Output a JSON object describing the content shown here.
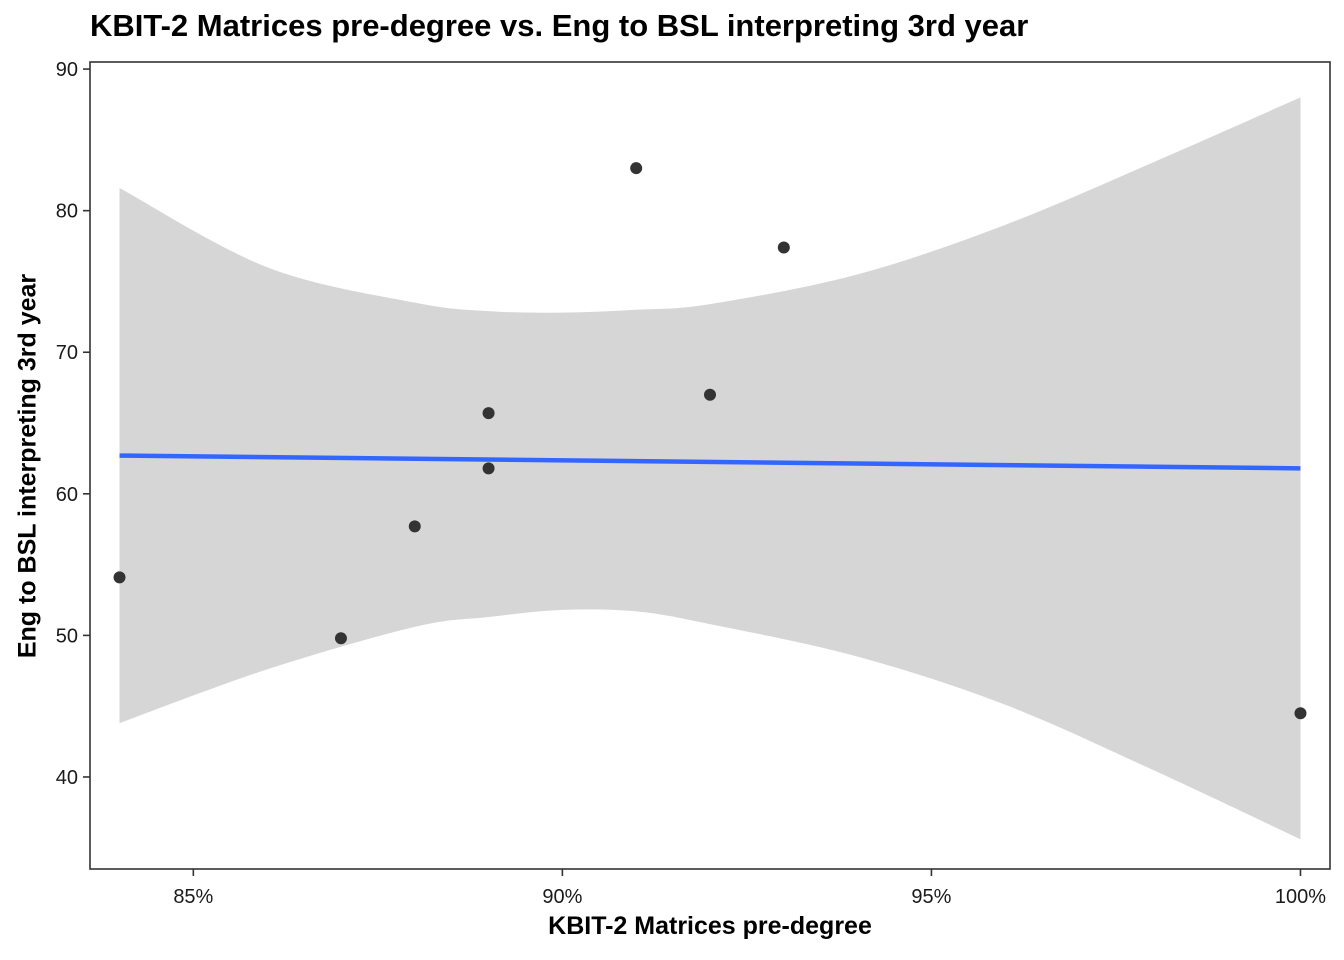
{
  "chart_data": {
    "type": "scatter",
    "title": "KBIT-2 Matrices pre-degree vs. Eng to BSL interpreting 3rd year",
    "xlabel": "KBIT-2 Matrices pre-degree",
    "ylabel": "Eng to BSL interpreting 3rd year",
    "xlim": [
      0.836,
      1.004
    ],
    "ylim": [
      33.5,
      90.5
    ],
    "x_ticks": [
      0.85,
      0.9,
      0.95,
      1.0
    ],
    "x_tick_labels": [
      "85%",
      "90%",
      "95%",
      "100%"
    ],
    "y_ticks": [
      40,
      50,
      60,
      70,
      80,
      90
    ],
    "y_tick_labels": [
      "40",
      "50",
      "60",
      "70",
      "80",
      "90"
    ],
    "grid": false,
    "legend": "none",
    "points": [
      {
        "x": 0.84,
        "y": 54.1
      },
      {
        "x": 0.87,
        "y": 49.8
      },
      {
        "x": 0.88,
        "y": 57.7
      },
      {
        "x": 0.89,
        "y": 61.8
      },
      {
        "x": 0.89,
        "y": 65.7
      },
      {
        "x": 0.91,
        "y": 83.0
      },
      {
        "x": 0.92,
        "y": 67.0
      },
      {
        "x": 0.93,
        "y": 77.4
      },
      {
        "x": 1.0,
        "y": 44.5
      }
    ],
    "fit_line": {
      "method": "linear regression",
      "x": [
        0.84,
        1.0
      ],
      "y": [
        62.7,
        61.8
      ],
      "color": "#3366ff"
    },
    "confidence_band": {
      "x": [
        0.84,
        0.86,
        0.88,
        0.89,
        0.9,
        0.91,
        0.92,
        0.94,
        0.96,
        0.98,
        1.0
      ],
      "upper": [
        81.6,
        76.0,
        73.5,
        72.9,
        72.8,
        73.0,
        73.4,
        75.5,
        79.0,
        83.4,
        88.0
      ],
      "lower": [
        43.8,
        47.6,
        50.6,
        51.3,
        51.8,
        51.7,
        50.8,
        48.5,
        45.1,
        40.5,
        35.6
      ],
      "color": "#d6d6d6"
    },
    "point_color": "#333333"
  }
}
